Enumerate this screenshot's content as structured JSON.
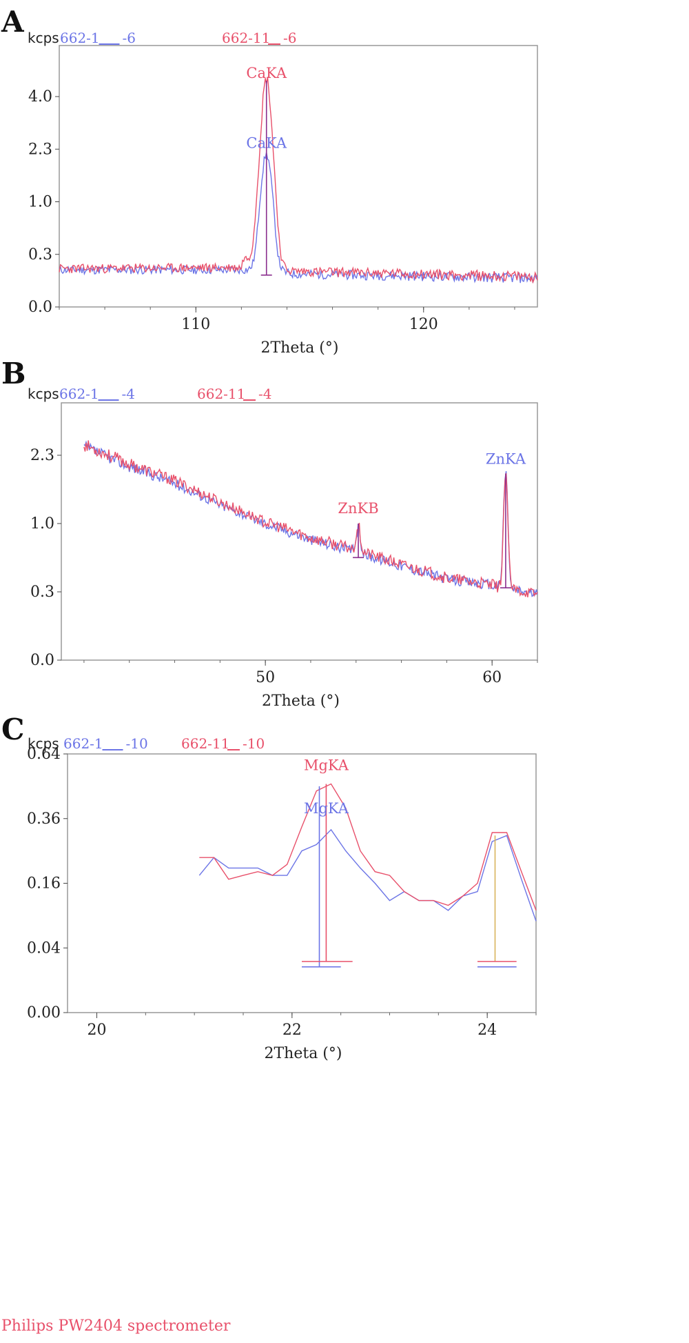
{
  "colors": {
    "blue": "#6b74e6",
    "red": "#e8506a",
    "marker": "#8a2e8e",
    "marker_alt": "#d8b45a"
  },
  "footer": "Philips PW2404 spectrometer",
  "chart_data": [
    {
      "type": "line",
      "panel": "A",
      "y_unit": "kcps",
      "xlabel": "2Theta (°)",
      "ylabel": "",
      "title": "",
      "xlim": [
        104,
        125
      ],
      "y_ticks": [
        "0.0",
        "0.3",
        "1.0",
        "2.3",
        "4.0"
      ],
      "y_tick_values": [
        0.0,
        0.3,
        1.0,
        2.3,
        4.0
      ],
      "x_ticks": [
        "110",
        "120"
      ],
      "x_tick_values": [
        110,
        120
      ],
      "legend": [
        {
          "label": "662-1",
          "suffix": "-6",
          "color": "#6b74e6"
        },
        {
          "label": "662-11",
          "suffix": "-6",
          "color": "#e8506a"
        }
      ],
      "series": [
        {
          "color": "#6b74e6",
          "baseline": [
            [
              104,
              0.15
            ],
            [
              112.2,
              0.15
            ],
            [
              113.3,
              0.15
            ],
            [
              114.2,
              0.12
            ],
            [
              125,
              0.09
            ]
          ],
          "peak": {
            "center": 113.1,
            "height": 2.0,
            "width": 0.32
          },
          "noise": 0.045,
          "seed": 11
        },
        {
          "color": "#e8506a",
          "baseline": [
            [
              104,
              0.16
            ],
            [
              112.0,
              0.17
            ],
            [
              112.1,
              0.26
            ],
            [
              113.3,
              0.18
            ],
            [
              114.3,
              0.14
            ],
            [
              125,
              0.1
            ]
          ],
          "peak": {
            "center": 113.1,
            "height": 4.5,
            "width": 0.34
          },
          "noise": 0.05,
          "seed": 23
        }
      ],
      "markers": [
        {
          "x": 113.1,
          "top": 4.6,
          "bottom": 0.11,
          "color": "#8a2e8e"
        }
      ],
      "peak_labels": [
        {
          "text": "CaKA",
          "x": 113.1,
          "y": 4.6,
          "color": "#e8506a"
        },
        {
          "text": "CaKA",
          "x": 113.1,
          "y": 2.25,
          "color": "#6b74e6"
        }
      ]
    },
    {
      "type": "line",
      "panel": "B",
      "y_unit": "kcps",
      "xlabel": "2Theta (°)",
      "ylabel": "",
      "title": "",
      "xlim": [
        41,
        62
      ],
      "y_ticks": [
        "0.0",
        "0.3",
        "1.0",
        "2.3"
      ],
      "y_tick_values": [
        0.0,
        0.3,
        1.0,
        2.3
      ],
      "x_ticks": [
        "50",
        "60"
      ],
      "x_tick_values": [
        50,
        60
      ],
      "legend": [
        {
          "label": "662-1",
          "suffix": "-4",
          "color": "#6b74e6"
        },
        {
          "label": "662-11",
          "suffix": "-4",
          "color": "#e8506a"
        }
      ],
      "series": [
        {
          "color": "#6b74e6",
          "baseline": [
            [
              42.0,
              2.5
            ],
            [
              44,
              2.05
            ],
            [
              46,
              1.7
            ],
            [
              48,
              1.3
            ],
            [
              50,
              1.0
            ],
            [
              52,
              0.8
            ],
            [
              54,
              0.66
            ],
            [
              56,
              0.52
            ],
            [
              58,
              0.4
            ],
            [
              60,
              0.35
            ],
            [
              62,
              0.28
            ]
          ],
          "peak": {
            "center": 60.6,
            "height": 1.6,
            "width": 0.12
          },
          "bump": {
            "center": 54.1,
            "height": 0.28,
            "width": 0.13
          },
          "noise": 0.045,
          "seed": 37
        },
        {
          "color": "#e8506a",
          "baseline": [
            [
              42.0,
              2.55
            ],
            [
              44,
              2.1
            ],
            [
              46,
              1.75
            ],
            [
              48,
              1.35
            ],
            [
              50,
              1.02
            ],
            [
              52,
              0.82
            ],
            [
              54,
              0.68
            ],
            [
              56,
              0.53
            ],
            [
              58,
              0.41
            ],
            [
              60,
              0.35
            ],
            [
              62,
              0.28
            ]
          ],
          "peak": {
            "center": 60.6,
            "height": 1.5,
            "width": 0.12
          },
          "bump": {
            "center": 54.1,
            "height": 0.3,
            "width": 0.13
          },
          "noise": 0.05,
          "seed": 53
        }
      ],
      "markers": [
        {
          "x": 54.1,
          "top": 1.0,
          "bottom": 0.6,
          "color": "#8a2e8e"
        },
        {
          "x": 60.6,
          "top": 1.9,
          "bottom": 0.33,
          "color": "#8a2e8e"
        }
      ],
      "peak_labels": [
        {
          "text": "ZnKB",
          "x": 54.1,
          "y": 1.12,
          "color": "#e8506a"
        },
        {
          "text": "ZnKA",
          "x": 60.6,
          "y": 2.05,
          "color": "#6b74e6"
        }
      ]
    },
    {
      "type": "line",
      "panel": "C",
      "y_unit": "kcps",
      "xlabel": "2Theta (°)",
      "ylabel": "",
      "title": "",
      "xlim": [
        19.7,
        24.5
      ],
      "y_ticks": [
        "0.00",
        "0.04",
        "0.16",
        "0.36",
        "0.64"
      ],
      "y_tick_values": [
        0.0,
        0.04,
        0.16,
        0.36,
        0.64
      ],
      "x_ticks": [
        "20",
        "22",
        "24"
      ],
      "x_tick_values": [
        20,
        22,
        24
      ],
      "legend": [
        {
          "label": "662-1",
          "suffix": "-10",
          "color": "#6b74e6"
        },
        {
          "label": "662-11",
          "suffix": "-10",
          "color": "#e8506a"
        }
      ],
      "series": [
        {
          "color": "#6b74e6",
          "x": [
            21.05,
            21.2,
            21.35,
            21.5,
            21.65,
            21.8,
            21.95,
            22.1,
            22.25,
            22.4,
            22.55,
            22.7,
            22.85,
            23.0,
            23.15,
            23.3,
            23.45,
            23.6,
            23.75,
            23.9,
            24.05,
            24.2,
            24.35,
            24.5
          ],
          "y": [
            0.18,
            0.23,
            0.2,
            0.2,
            0.2,
            0.18,
            0.18,
            0.25,
            0.27,
            0.32,
            0.25,
            0.2,
            0.16,
            0.12,
            0.14,
            0.12,
            0.12,
            0.1,
            0.13,
            0.14,
            0.28,
            0.3,
            0.17,
            0.08
          ]
        },
        {
          "color": "#e8506a",
          "x": [
            21.05,
            21.2,
            21.35,
            21.5,
            21.65,
            21.8,
            21.95,
            22.1,
            22.25,
            22.4,
            22.55,
            22.7,
            22.85,
            23.0,
            23.15,
            23.3,
            23.45,
            23.6,
            23.75,
            23.9,
            24.05,
            24.2,
            24.35,
            24.5
          ],
          "y": [
            0.23,
            0.23,
            0.17,
            0.18,
            0.19,
            0.18,
            0.21,
            0.33,
            0.47,
            0.5,
            0.4,
            0.25,
            0.19,
            0.18,
            0.14,
            0.12,
            0.12,
            0.11,
            0.13,
            0.16,
            0.31,
            0.31,
            0.19,
            0.1
          ]
        }
      ],
      "markers": [
        {
          "x": 22.28,
          "top": 0.49,
          "bottom": 0.02,
          "color": "#6b74e6"
        },
        {
          "x": 22.35,
          "top": 0.5,
          "bottom": 0.025,
          "color": "#e8506a"
        },
        {
          "x": 24.08,
          "top": 0.3,
          "bottom": 0.025,
          "color": "#d8b45a"
        }
      ],
      "baseline_marks": [
        {
          "x0": 22.1,
          "x1": 22.5,
          "y": 0.02,
          "color": "#6b74e6"
        },
        {
          "x0": 22.1,
          "x1": 22.62,
          "y": 0.025,
          "color": "#e8506a"
        },
        {
          "x0": 23.9,
          "x1": 24.3,
          "y": 0.02,
          "color": "#6b74e6"
        },
        {
          "x0": 23.9,
          "x1": 24.3,
          "y": 0.025,
          "color": "#e8506a"
        }
      ],
      "peak_labels": [
        {
          "text": "MgKA",
          "x": 22.35,
          "y": 0.55,
          "color": "#e8506a"
        },
        {
          "text": "MgKA",
          "x": 22.35,
          "y": 0.37,
          "color": "#6b74e6"
        }
      ]
    }
  ]
}
